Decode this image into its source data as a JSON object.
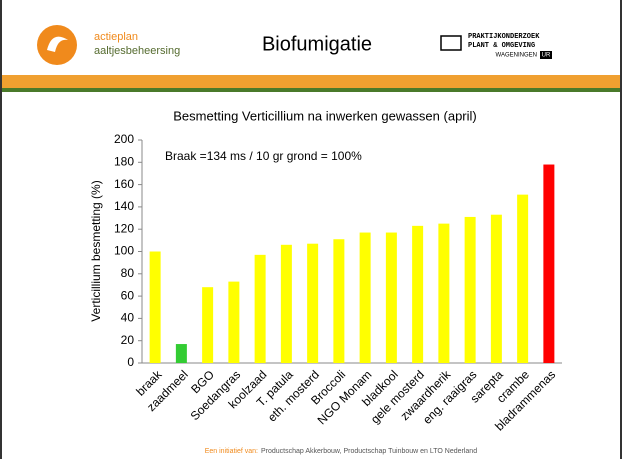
{
  "header": {
    "logo_line1": "actieplan",
    "logo_line2": "aaltjesbeheersing",
    "title": "Biofumigatie",
    "partner_line1": "PRAKTIJKONDERZOEK",
    "partner_line2": "PLANT & OMGEVING",
    "partner_line3": "WAGENINGEN",
    "partner_line4": "UR"
  },
  "chart_data": {
    "type": "bar",
    "title": "Besmetting Verticillium na inwerken gewassen (april)",
    "y_label": "Verticillium besmetting (%)",
    "annotation": "Braak =134 ms / 10 gr grond = 100%",
    "categories": [
      "braak",
      "zaadmeel",
      "BGO",
      "Soedangras",
      "koolzaad",
      "T. patula",
      "eth. mosterd",
      "Broccoli",
      "NGO Monam",
      "bladkool",
      "gele mosterd",
      "zwaardherik",
      "eng. raaigras",
      "sarepta",
      "crambe",
      "bladrammenas"
    ],
    "values": [
      100,
      17,
      68,
      73,
      97,
      106,
      107,
      111,
      117,
      117,
      123,
      125,
      131,
      133,
      151,
      178
    ],
    "colors": [
      "#ffff00",
      "#33cc33",
      "#ffff00",
      "#ffff00",
      "#ffff00",
      "#ffff00",
      "#ffff00",
      "#ffff00",
      "#ffff00",
      "#ffff00",
      "#ffff00",
      "#ffff00",
      "#ffff00",
      "#ffff00",
      "#ffff00",
      "#ff0000"
    ],
    "ylim": [
      0,
      200
    ],
    "yticks": [
      0,
      20,
      40,
      60,
      80,
      100,
      120,
      140,
      160,
      180,
      200
    ],
    "grid": false
  },
  "footer": {
    "lead": "Een initiatief van:",
    "text": "Productschap Akkerbouw, Productschap Tuinbouw en LTO Nederland"
  }
}
